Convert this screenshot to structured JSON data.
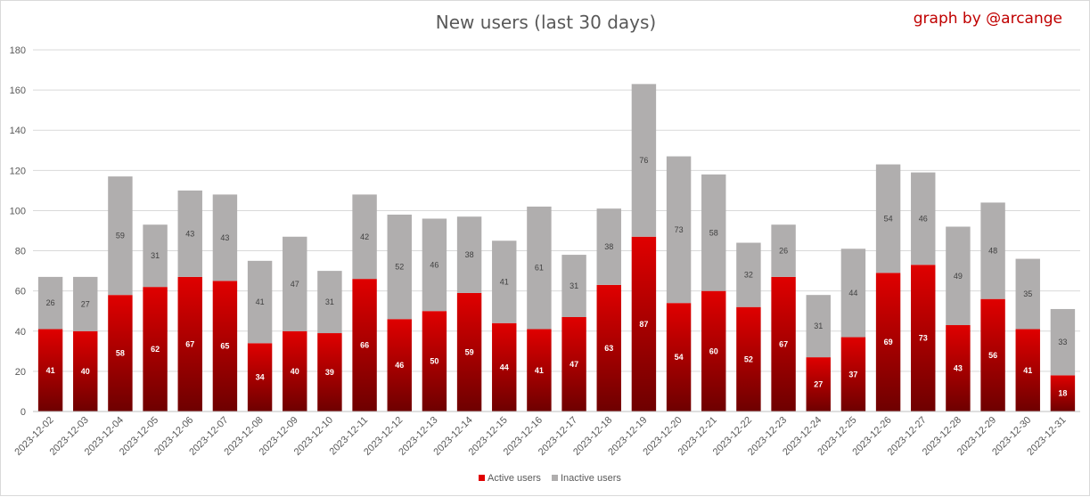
{
  "credit": "graph by @arcange",
  "colors": {
    "active_top": "#e00000",
    "active_bottom": "#6e0000",
    "inactive": "#b0aeae",
    "grid": "#d9d9d9"
  },
  "chart_data": {
    "type": "bar",
    "stacked": true,
    "title": "New users (last 30 days)",
    "xlabel": "",
    "ylabel": "",
    "ylim": [
      0,
      180
    ],
    "yticks": [
      0,
      20,
      40,
      60,
      80,
      100,
      120,
      140,
      160,
      180
    ],
    "grid": true,
    "legend_position": "bottom",
    "categories": [
      "2023-12-02",
      "2023-12-03",
      "2023-12-04",
      "2023-12-05",
      "2023-12-06",
      "2023-12-07",
      "2023-12-08",
      "2023-12-09",
      "2023-12-10",
      "2023-12-11",
      "2023-12-12",
      "2023-12-13",
      "2023-12-14",
      "2023-12-15",
      "2023-12-16",
      "2023-12-17",
      "2023-12-18",
      "2023-12-19",
      "2023-12-20",
      "2023-12-21",
      "2023-12-22",
      "2023-12-23",
      "2023-12-24",
      "2023-12-25",
      "2023-12-26",
      "2023-12-27",
      "2023-12-28",
      "2023-12-29",
      "2023-12-30",
      "2023-12-31"
    ],
    "series": [
      {
        "name": "Active users",
        "values": [
          41,
          40,
          58,
          62,
          67,
          65,
          34,
          40,
          39,
          66,
          46,
          50,
          59,
          44,
          41,
          47,
          63,
          87,
          54,
          60,
          52,
          67,
          27,
          37,
          69,
          73,
          43,
          56,
          41,
          18
        ]
      },
      {
        "name": "Inactive users",
        "values": [
          26,
          27,
          59,
          31,
          43,
          43,
          41,
          47,
          31,
          42,
          52,
          46,
          38,
          41,
          61,
          31,
          38,
          76,
          73,
          58,
          32,
          26,
          31,
          44,
          54,
          46,
          49,
          48,
          35,
          33
        ]
      }
    ]
  }
}
